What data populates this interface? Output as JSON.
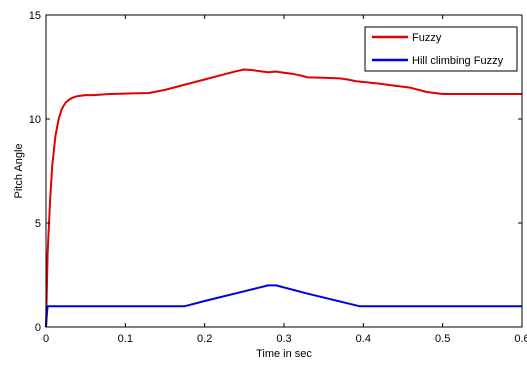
{
  "chart_data": {
    "type": "line",
    "xlabel": "Time in sec",
    "ylabel": "Pitch Angle",
    "xlim": [
      0,
      0.6
    ],
    "ylim": [
      0,
      15
    ],
    "xticks": [
      0,
      0.1,
      0.2,
      0.3,
      0.4,
      0.5,
      0.6
    ],
    "xtick_labels": [
      "0",
      "0.1",
      "0.2",
      "0.3",
      "0.4",
      "0.5",
      "0.6"
    ],
    "yticks": [
      0,
      5,
      10,
      15
    ],
    "ytick_labels": [
      "0",
      "5",
      "10",
      "15"
    ],
    "grid": false,
    "legend_position": "top-right",
    "series": [
      {
        "name": "Fuzzy",
        "color": "#e00000",
        "x": [
          0,
          0.002,
          0.005,
          0.008,
          0.012,
          0.016,
          0.02,
          0.025,
          0.03,
          0.035,
          0.04,
          0.05,
          0.06,
          0.08,
          0.1,
          0.13,
          0.15,
          0.18,
          0.2,
          0.22,
          0.24,
          0.25,
          0.26,
          0.27,
          0.28,
          0.29,
          0.3,
          0.31,
          0.32,
          0.33,
          0.35,
          0.37,
          0.38,
          0.39,
          0.4,
          0.42,
          0.44,
          0.46,
          0.48,
          0.5,
          0.52,
          0.55,
          0.58,
          0.6
        ],
        "y": [
          0,
          3.5,
          6.0,
          7.8,
          9.2,
          10.0,
          10.5,
          10.8,
          10.95,
          11.05,
          11.1,
          11.15,
          11.15,
          11.2,
          11.22,
          11.25,
          11.4,
          11.7,
          11.9,
          12.1,
          12.3,
          12.38,
          12.35,
          12.3,
          12.25,
          12.28,
          12.22,
          12.18,
          12.1,
          12.0,
          11.98,
          11.95,
          11.9,
          11.82,
          11.78,
          11.7,
          11.6,
          11.5,
          11.3,
          11.2,
          11.2,
          11.2,
          11.2,
          11.2
        ]
      },
      {
        "name": "Hill climbing Fuzzy",
        "color": "#0000e0",
        "x": [
          0,
          0.001,
          0.002,
          0.1,
          0.175,
          0.2,
          0.28,
          0.29,
          0.33,
          0.395,
          0.4,
          0.5,
          0.6
        ],
        "y": [
          0,
          0.6,
          1.0,
          1.0,
          1.0,
          1.25,
          2.0,
          2.0,
          1.6,
          1.0,
          1.0,
          1.0,
          1.0
        ]
      }
    ]
  }
}
